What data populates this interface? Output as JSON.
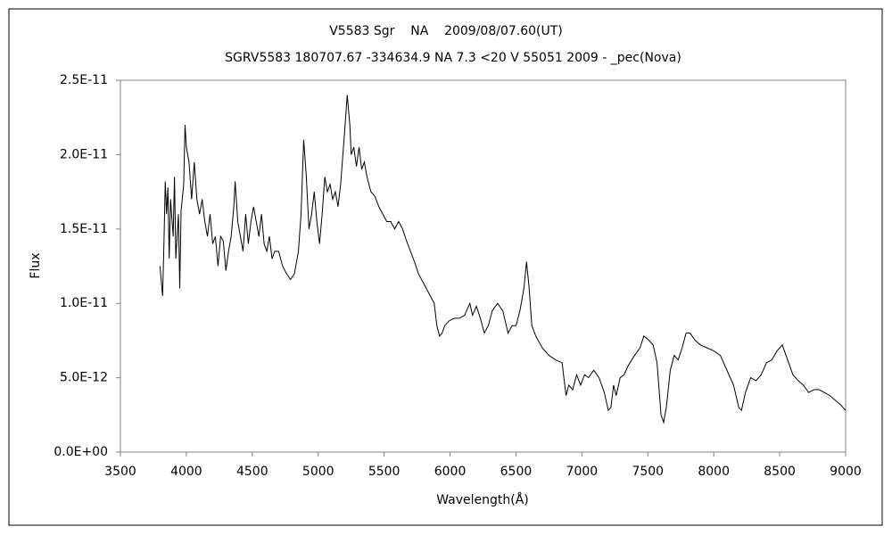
{
  "chart_data": {
    "type": "line",
    "title": "V5583 Sgr    NA    2009/08/07.60(UT)",
    "subtitle": "SGRV5583 180707.67 -334634.9 NA 7.3 <20 V 55051 2009 - _pec(Nova)",
    "x_label": "Wavelength(Å)",
    "y_label": "Flux",
    "xlim": [
      3500,
      9000
    ],
    "xticks": [
      3500,
      4000,
      4500,
      5000,
      5500,
      6000,
      6500,
      7000,
      7500,
      8000,
      8500,
      9000
    ],
    "ylim": [
      0,
      2.5e-11
    ],
    "yticks": [
      {
        "value": 0,
        "label": "0.0E+00"
      },
      {
        "value": 5e-12,
        "label": "5.0E-12"
      },
      {
        "value": 1e-11,
        "label": "1.0E-11"
      },
      {
        "value": 1.5e-11,
        "label": "1.5E-11"
      },
      {
        "value": 2e-11,
        "label": "2.0E-11"
      },
      {
        "value": 2.5e-11,
        "label": "2.5E-11"
      }
    ],
    "grid": false,
    "series": [
      {
        "name": "V5583 Sgr",
        "color": "#000000",
        "x": [
          3800,
          3810,
          3820,
          3830,
          3840,
          3850,
          3860,
          3870,
          3880,
          3900,
          3910,
          3920,
          3940,
          3950,
          3960,
          3980,
          3990,
          4000,
          4020,
          4040,
          4060,
          4080,
          4100,
          4120,
          4140,
          4160,
          4180,
          4200,
          4220,
          4240,
          4260,
          4280,
          4300,
          4320,
          4340,
          4360,
          4370,
          4390,
          4410,
          4430,
          4450,
          4470,
          4490,
          4510,
          4530,
          4550,
          4570,
          4590,
          4610,
          4630,
          4650,
          4670,
          4700,
          4730,
          4760,
          4790,
          4820,
          4850,
          4870,
          4890,
          4910,
          4930,
          4950,
          4970,
          4990,
          5010,
          5030,
          5050,
          5070,
          5090,
          5110,
          5130,
          5150,
          5170,
          5200,
          5220,
          5240,
          5250,
          5270,
          5290,
          5310,
          5330,
          5350,
          5370,
          5400,
          5430,
          5460,
          5490,
          5520,
          5550,
          5580,
          5610,
          5640,
          5670,
          5700,
          5730,
          5760,
          5790,
          5820,
          5850,
          5880,
          5900,
          5920,
          5940,
          5960,
          5990,
          6030,
          6070,
          6110,
          6150,
          6170,
          6200,
          6230,
          6260,
          6290,
          6320,
          6360,
          6400,
          6440,
          6470,
          6500,
          6530,
          6560,
          6580,
          6600,
          6620,
          6650,
          6700,
          6750,
          6800,
          6850,
          6870,
          6880,
          6900,
          6930,
          6960,
          6990,
          7020,
          7050,
          7090,
          7130,
          7170,
          7200,
          7220,
          7240,
          7260,
          7290,
          7320,
          7350,
          7400,
          7440,
          7470,
          7510,
          7540,
          7570,
          7600,
          7620,
          7640,
          7670,
          7700,
          7730,
          7760,
          7790,
          7820,
          7860,
          7900,
          7950,
          8000,
          8050,
          8100,
          8150,
          8190,
          8210,
          8240,
          8280,
          8320,
          8360,
          8400,
          8440,
          8480,
          8520,
          8560,
          8600,
          8640,
          8680,
          8720,
          8760,
          8800,
          8840,
          8880,
          8920,
          8960,
          9000
        ],
        "values": [
          1.25e-11,
          1.15e-11,
          1.05e-11,
          1.4e-11,
          1.82e-11,
          1.6e-11,
          1.78e-11,
          1.3e-11,
          1.7e-11,
          1.45e-11,
          1.85e-11,
          1.3e-11,
          1.6e-11,
          1.1e-11,
          1.62e-11,
          1.8e-11,
          2.2e-11,
          2.05e-11,
          1.95e-11,
          1.7e-11,
          1.95e-11,
          1.7e-11,
          1.6e-11,
          1.7e-11,
          1.55e-11,
          1.45e-11,
          1.6e-11,
          1.4e-11,
          1.45e-11,
          1.25e-11,
          1.45e-11,
          1.42e-11,
          1.22e-11,
          1.35e-11,
          1.45e-11,
          1.65e-11,
          1.82e-11,
          1.55e-11,
          1.45e-11,
          1.35e-11,
          1.6e-11,
          1.4e-11,
          1.55e-11,
          1.65e-11,
          1.55e-11,
          1.45e-11,
          1.6e-11,
          1.4e-11,
          1.35e-11,
          1.45e-11,
          1.3e-11,
          1.35e-11,
          1.35e-11,
          1.25e-11,
          1.2e-11,
          1.16e-11,
          1.2e-11,
          1.35e-11,
          1.6e-11,
          2.1e-11,
          1.85e-11,
          1.5e-11,
          1.6e-11,
          1.75e-11,
          1.55e-11,
          1.4e-11,
          1.6e-11,
          1.85e-11,
          1.75e-11,
          1.8e-11,
          1.7e-11,
          1.75e-11,
          1.65e-11,
          1.8e-11,
          2.15e-11,
          2.4e-11,
          2.2e-11,
          2e-11,
          2.05e-11,
          1.92e-11,
          2.05e-11,
          1.9e-11,
          1.95e-11,
          1.85e-11,
          1.75e-11,
          1.72e-11,
          1.65e-11,
          1.6e-11,
          1.55e-11,
          1.55e-11,
          1.5e-11,
          1.55e-11,
          1.5e-11,
          1.42e-11,
          1.35e-11,
          1.28e-11,
          1.2e-11,
          1.15e-11,
          1.1e-11,
          1.05e-11,
          1e-11,
          8.5e-12,
          7.8e-12,
          8e-12,
          8.5e-12,
          8.8e-12,
          9e-12,
          9e-12,
          9.2e-12,
          1e-11,
          9.2e-12,
          9.8e-12,
          9e-12,
          8e-12,
          8.5e-12,
          9.5e-12,
          1e-11,
          9.5e-12,
          8e-12,
          8.5e-12,
          8.5e-12,
          9.5e-12,
          1.1e-11,
          1.28e-11,
          1.1e-11,
          8.5e-12,
          7.8e-12,
          7e-12,
          6.5e-12,
          6.2e-12,
          6e-12,
          4.5e-12,
          3.8e-12,
          4.5e-12,
          4.2e-12,
          5.2e-12,
          4.5e-12,
          5.2e-12,
          5e-12,
          5.5e-12,
          5e-12,
          4e-12,
          2.8e-12,
          3e-12,
          4.5e-12,
          3.8e-12,
          5e-12,
          5.2e-12,
          5.8e-12,
          6.5e-12,
          7e-12,
          7.8e-12,
          7.5e-12,
          7.2e-12,
          6e-12,
          2.5e-12,
          2e-12,
          3e-12,
          5.5e-12,
          6.5e-12,
          6.2e-12,
          7e-12,
          8e-12,
          8e-12,
          7.5e-12,
          7.2e-12,
          7e-12,
          6.8e-12,
          6.5e-12,
          5.5e-12,
          4.5e-12,
          3e-12,
          2.8e-12,
          4e-12,
          5e-12,
          4.8e-12,
          5.2e-12,
          6e-12,
          6.2e-12,
          6.8e-12,
          7.2e-12,
          6.2e-12,
          5.2e-12,
          4.8e-12,
          4.5e-12,
          4e-12,
          4.2e-12,
          4.2e-12,
          4e-12,
          3.8e-12,
          3.5e-12,
          3.2e-12,
          2.8e-12
        ]
      }
    ]
  }
}
